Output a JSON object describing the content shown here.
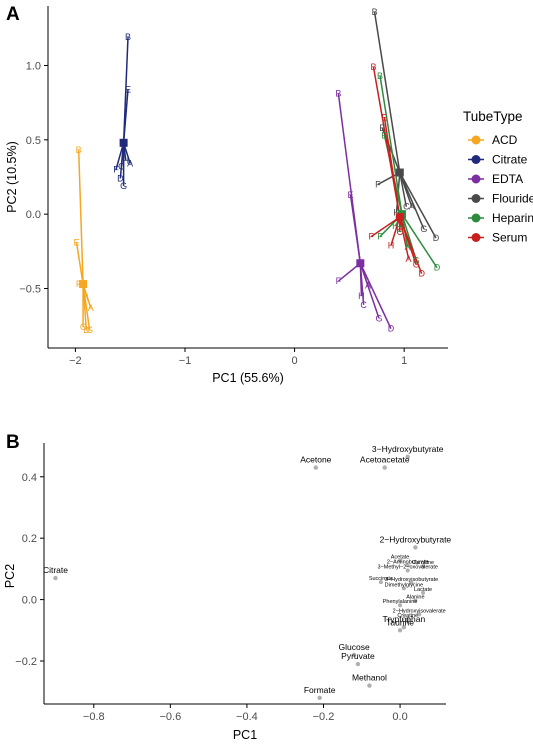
{
  "panels": {
    "a_label": "A",
    "b_label": "B"
  },
  "chart_data": [
    {
      "type": "scatter",
      "panel": "A",
      "xlabel": "PC1 (55.6%)",
      "ylabel": "PC2 (10.5%)",
      "xlim": [
        -2.25,
        1.4
      ],
      "ylim": [
        -0.9,
        1.4
      ],
      "xticks": [
        -2,
        -1,
        0,
        1
      ],
      "xtick_labels": [
        "−2",
        "−1",
        "0",
        "1"
      ],
      "yticks": [
        -0.5,
        0.0,
        0.5,
        1.0
      ],
      "ytick_labels": [
        "−0.5",
        "0.0",
        "0.5",
        "1.0"
      ],
      "grid": false,
      "legend": {
        "title": "TubeType",
        "position": "right"
      },
      "series": [
        {
          "name": "ACD",
          "color": "#F5A623",
          "centroid": [
            -1.93,
            -0.47
          ],
          "points": [
            {
              "label": "B",
              "x": -1.97,
              "y": 0.43
            },
            {
              "label": "E",
              "x": -1.99,
              "y": -0.19
            },
            {
              "label": "F",
              "x": -1.97,
              "y": -0.47
            },
            {
              "label": "H",
              "x": -1.91,
              "y": -0.56
            },
            {
              "label": "A",
              "x": -1.86,
              "y": -0.63
            },
            {
              "label": "C",
              "x": -1.93,
              "y": -0.76
            },
            {
              "label": "D",
              "x": -1.9,
              "y": -0.78
            },
            {
              "label": "G",
              "x": -1.87,
              "y": -0.78
            }
          ]
        },
        {
          "name": "Citrate",
          "color": "#1F2A7A",
          "centroid": [
            -1.56,
            0.48
          ],
          "points": [
            {
              "label": "B",
              "x": -1.52,
              "y": 1.19
            },
            {
              "label": "E",
              "x": -1.52,
              "y": 0.84
            },
            {
              "label": "A",
              "x": -1.5,
              "y": 0.34
            },
            {
              "label": "F",
              "x": -1.63,
              "y": 0.3
            },
            {
              "label": "C",
              "x": -1.58,
              "y": 0.32
            },
            {
              "label": "H",
              "x": -1.54,
              "y": 0.36
            },
            {
              "label": "D",
              "x": -1.59,
              "y": 0.24
            },
            {
              "label": "G",
              "x": -1.56,
              "y": 0.19
            }
          ]
        },
        {
          "name": "EDTA",
          "color": "#7B2FA0",
          "centroid": [
            0.6,
            -0.33
          ],
          "points": [
            {
              "label": "B",
              "x": 0.4,
              "y": 0.81
            },
            {
              "label": "E",
              "x": 0.51,
              "y": 0.13
            },
            {
              "label": "F",
              "x": 0.4,
              "y": -0.45
            },
            {
              "label": "H",
              "x": 0.61,
              "y": -0.55
            },
            {
              "label": "A",
              "x": 0.67,
              "y": -0.48
            },
            {
              "label": "C",
              "x": 0.63,
              "y": -0.61
            },
            {
              "label": "G",
              "x": 0.77,
              "y": -0.7
            },
            {
              "label": "D",
              "x": 0.88,
              "y": -0.77
            }
          ]
        },
        {
          "name": "Flouride",
          "color": "#4A4A4A",
          "centroid": [
            0.96,
            0.28
          ],
          "points": [
            {
              "label": "B",
              "x": 0.73,
              "y": 1.36
            },
            {
              "label": "E",
              "x": 0.8,
              "y": 0.58
            },
            {
              "label": "F",
              "x": 0.76,
              "y": 0.2
            },
            {
              "label": "C",
              "x": 1.02,
              "y": 0.05
            },
            {
              "label": "H",
              "x": 0.93,
              "y": 0.01
            },
            {
              "label": "A",
              "x": 1.07,
              "y": 0.05
            },
            {
              "label": "G",
              "x": 1.18,
              "y": -0.1
            },
            {
              "label": "D",
              "x": 1.29,
              "y": -0.16
            }
          ]
        },
        {
          "name": "Heparin",
          "color": "#2E8B3E",
          "centroid": [
            0.98,
            0.0
          ],
          "points": [
            {
              "label": "B",
              "x": 0.78,
              "y": 0.93
            },
            {
              "label": "E",
              "x": 0.82,
              "y": 0.53
            },
            {
              "label": "F",
              "x": 0.78,
              "y": -0.15
            },
            {
              "label": "H",
              "x": 0.92,
              "y": -0.08
            },
            {
              "label": "C",
              "x": 0.96,
              "y": -0.1
            },
            {
              "label": "A",
              "x": 1.03,
              "y": -0.22
            },
            {
              "label": "G",
              "x": 1.11,
              "y": -0.31
            },
            {
              "label": "D",
              "x": 1.3,
              "y": -0.36
            }
          ]
        },
        {
          "name": "Serum",
          "color": "#C8201E",
          "centroid": [
            0.96,
            -0.02
          ],
          "points": [
            {
              "label": "B",
              "x": 0.72,
              "y": 0.99
            },
            {
              "label": "E",
              "x": 0.82,
              "y": 0.65
            },
            {
              "label": "F",
              "x": 0.7,
              "y": -0.15
            },
            {
              "label": "H",
              "x": 0.88,
              "y": -0.21
            },
            {
              "label": "C",
              "x": 0.96,
              "y": -0.12
            },
            {
              "label": "A",
              "x": 1.04,
              "y": -0.3
            },
            {
              "label": "G",
              "x": 1.11,
              "y": -0.34
            },
            {
              "label": "D",
              "x": 1.16,
              "y": -0.4
            }
          ]
        }
      ]
    },
    {
      "type": "scatter",
      "panel": "B",
      "xlabel": "PC1",
      "ylabel": "PC2",
      "xlim": [
        -0.93,
        0.12
      ],
      "ylim": [
        -0.34,
        0.51
      ],
      "xticks": [
        -0.8,
        -0.6,
        -0.4,
        -0.2,
        0.0
      ],
      "xtick_labels": [
        "−0.8",
        "−0.6",
        "−0.4",
        "−0.2",
        "0.0"
      ],
      "yticks": [
        -0.2,
        0.0,
        0.2,
        0.4
      ],
      "ytick_labels": [
        "−0.2",
        "0.0",
        "0.2",
        "0.4"
      ],
      "grid": false,
      "point_color": "#B0B0B0",
      "points": [
        {
          "label": "3−Hydroxybutyrate",
          "x": 0.02,
          "y": 0.465
        },
        {
          "label": "Acetoacetate",
          "x": -0.04,
          "y": 0.43
        },
        {
          "label": "Acetone",
          "x": -0.22,
          "y": 0.43
        },
        {
          "label": "2−Hydroxybutyrate",
          "x": 0.04,
          "y": 0.17
        },
        {
          "label": "Citrate",
          "x": -0.9,
          "y": 0.07
        },
        {
          "label": "Tryptophan",
          "x": 0.01,
          "y": -0.09
        },
        {
          "label": "Taurine",
          "x": 0.0,
          "y": -0.1
        },
        {
          "label": "Glucose",
          "x": -0.12,
          "y": -0.18
        },
        {
          "label": "Pyruvate",
          "x": -0.11,
          "y": -0.21
        },
        {
          "label": "Methanol",
          "x": -0.08,
          "y": -0.28
        },
        {
          "label": "Formate",
          "x": -0.21,
          "y": -0.32
        }
      ],
      "cluster_labels": [
        {
          "label": "Acetate",
          "x": 0.0,
          "y": 0.13
        },
        {
          "label": "2−Aminobutyrate",
          "x": 0.02,
          "y": 0.115
        },
        {
          "label": "Carnitine",
          "x": 0.06,
          "y": 0.112
        },
        {
          "label": "3−Methyl−2−oxovalerate",
          "x": 0.02,
          "y": 0.098
        },
        {
          "label": "Succinate",
          "x": -0.05,
          "y": 0.06
        },
        {
          "label": "3−Hydroxyisobutyrate",
          "x": 0.03,
          "y": 0.058
        },
        {
          "label": "Dimethylglycine",
          "x": 0.01,
          "y": 0.04
        },
        {
          "label": "Lactate",
          "x": 0.06,
          "y": 0.025
        },
        {
          "label": "Alanine",
          "x": 0.04,
          "y": 0.0
        },
        {
          "label": "Phenylalanine",
          "x": 0.0,
          "y": -0.015
        },
        {
          "label": "2−Hydroxyisovalerate",
          "x": 0.05,
          "y": -0.045
        },
        {
          "label": "Creatine",
          "x": 0.02,
          "y": -0.06
        }
      ]
    }
  ]
}
